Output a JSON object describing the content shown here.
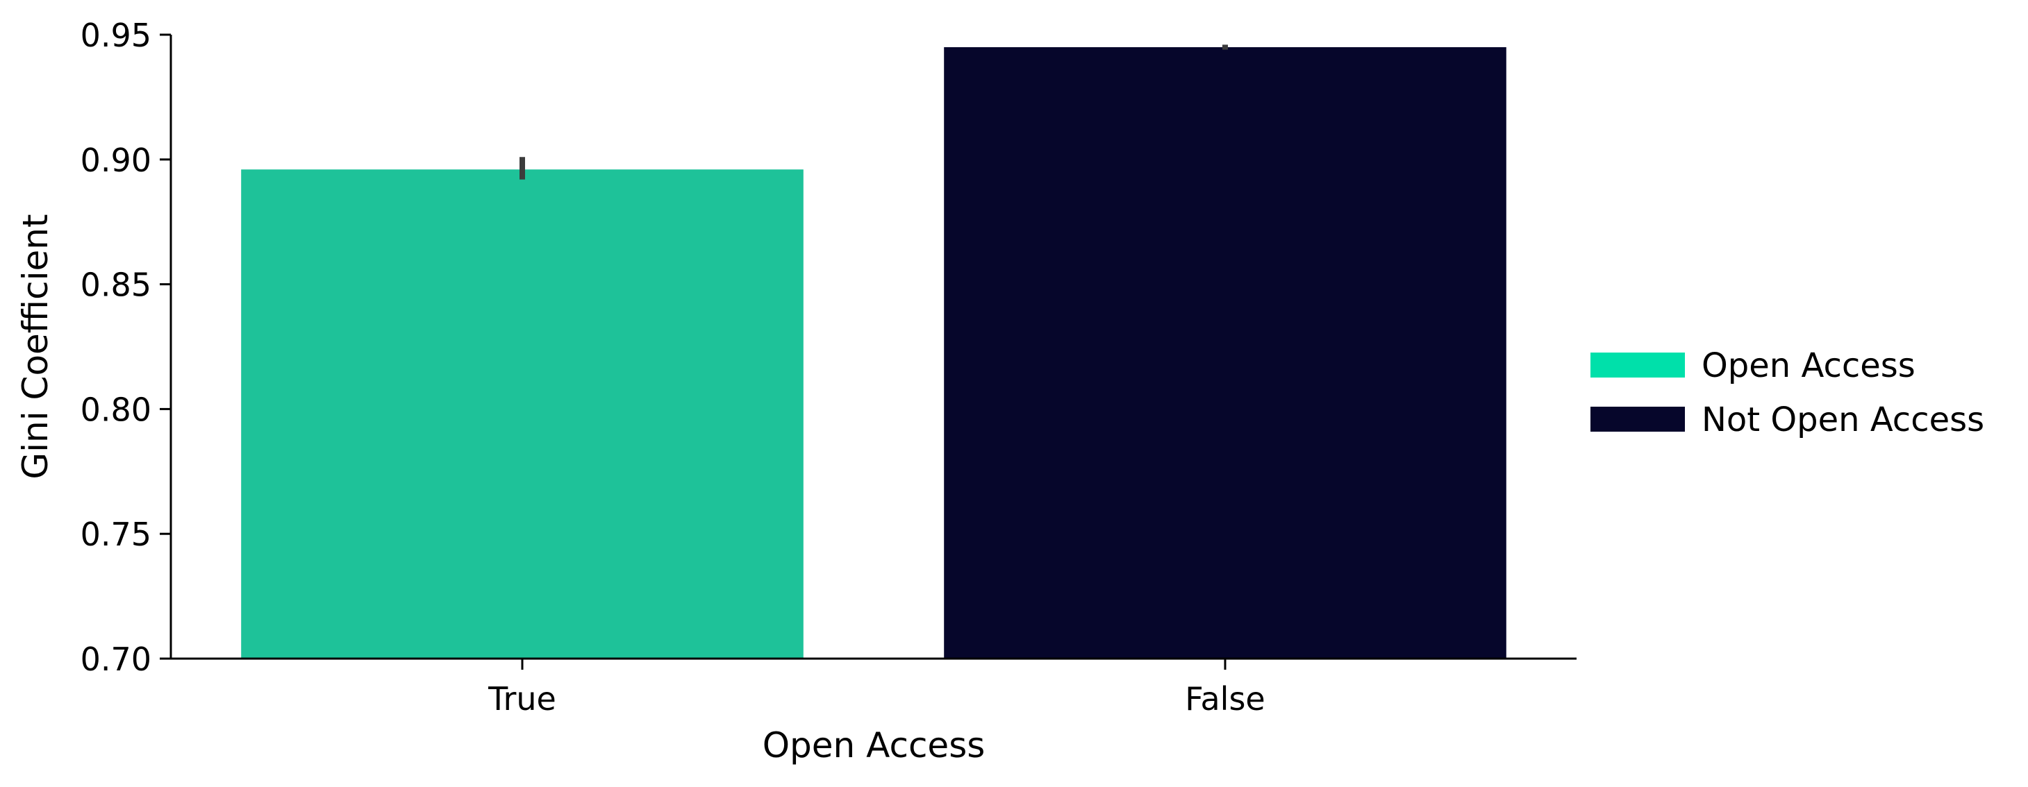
{
  "chart_data": {
    "type": "bar",
    "title": "",
    "xlabel": "Open Access",
    "ylabel": "Gini Coefficient",
    "categories": [
      "True",
      "False"
    ],
    "values": [
      0.896,
      0.945
    ],
    "error_bars": [
      {
        "low": 0.892,
        "high": 0.901
      },
      {
        "low": 0.944,
        "high": 0.946
      }
    ],
    "ylim": [
      0.7,
      0.95
    ],
    "yticks": [
      "0.70",
      "0.75",
      "0.80",
      "0.85",
      "0.90",
      "0.95"
    ],
    "grid": false,
    "legend": {
      "placement": "center-right",
      "entries": [
        {
          "label": "Open Access",
          "color": "#00e0aa"
        },
        {
          "label": "Not Open Access",
          "color": "#06062b"
        }
      ]
    },
    "bar_colors": [
      "#1ec299",
      "#06062b"
    ],
    "errorbar_color": "#3c3c3c"
  }
}
